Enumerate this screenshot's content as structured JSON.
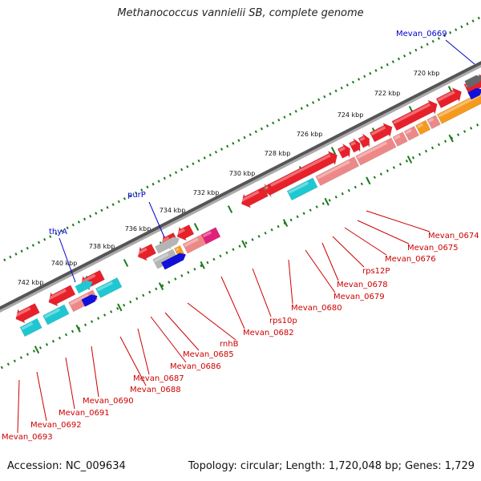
{
  "title": "Methanococcus vannielii SB, complete genome",
  "footer": {
    "accession": "Accession: NC_009634",
    "summary": "Topology: circular; Length: 1,720,048 bp; Genes: 1,729"
  },
  "colors": {
    "red": "#e8202a",
    "pink": "#ee8888",
    "orange": "#f59a1e",
    "cyan": "#1ec8d2",
    "grey": "#b4b4b4",
    "blue": "#1010d8",
    "magenta": "#e0207a",
    "label_red": "#cc0000",
    "label_blue": "#0000cc"
  },
  "scale": {
    "unit": "kbp",
    "ticks": [
      {
        "label": "742 kbp"
      },
      {
        "label": "740 kbp"
      },
      {
        "label": "738 kbp"
      },
      {
        "label": "736 kbp"
      },
      {
        "label": "734 kbp"
      },
      {
        "label": "732 kbp"
      },
      {
        "label": "730 kbp"
      },
      {
        "label": "728 kbp"
      },
      {
        "label": "726 kbp"
      },
      {
        "label": "724 kbp"
      },
      {
        "label": "722 kbp"
      },
      {
        "label": "720 kbp"
      }
    ]
  },
  "top_labels": [
    {
      "text": "Mevan_0669"
    },
    {
      "text": "purP"
    },
    {
      "text": "thyA"
    }
  ],
  "bottom_labels": [
    {
      "text": "Mevan_0674"
    },
    {
      "text": "Mevan_0675"
    },
    {
      "text": "Mevan_0676"
    },
    {
      "text": "rps12P"
    },
    {
      "text": "Mevan_0678"
    },
    {
      "text": "Mevan_0679"
    },
    {
      "text": "Mevan_0680"
    },
    {
      "text": "rps10p"
    },
    {
      "text": "Mevan_0682"
    },
    {
      "text": "rnhB"
    },
    {
      "text": "Mevan_0685"
    },
    {
      "text": "Mevan_0686"
    },
    {
      "text": "Mevan_0687"
    },
    {
      "text": "Mevan_0688"
    },
    {
      "text": "Mevan_0690"
    },
    {
      "text": "Mevan_0691"
    },
    {
      "text": "Mevan_0692"
    },
    {
      "text": "Mevan_0693"
    }
  ]
}
